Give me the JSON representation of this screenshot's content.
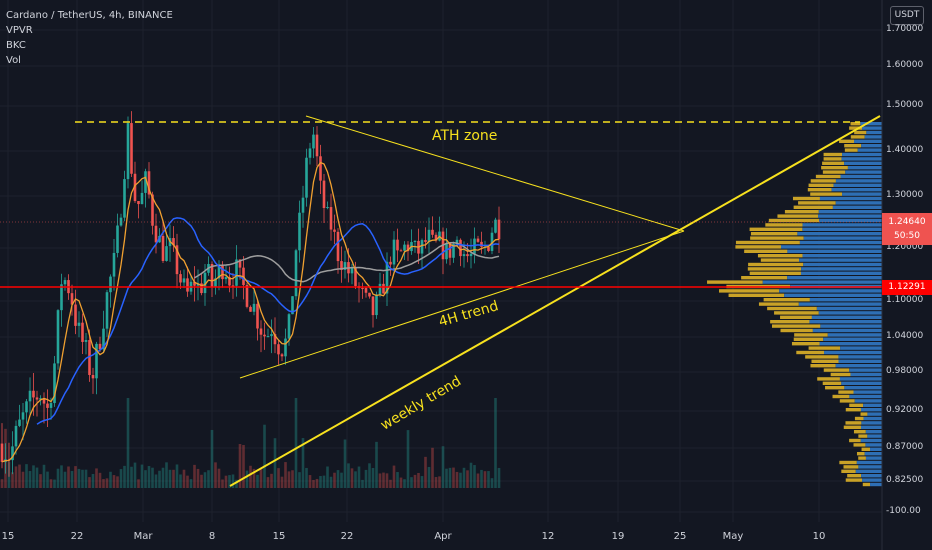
{
  "legend": {
    "symbol": "Cardano / TetherUS, 4h, BINANCE",
    "indicators": [
      "VPVR",
      "BKC",
      "Vol"
    ]
  },
  "axis_unit": "USDT",
  "chart_data": {
    "type": "candlestick",
    "y_ticks": [
      "1.70000",
      "1.60000",
      "1.50000",
      "1.40000",
      "1.30000",
      "1.20000",
      "1.10000",
      "1.04000",
      "0.98000",
      "0.92000",
      "0.87000",
      "0.82500",
      "-100.00"
    ],
    "x_ticks": [
      "15",
      "22",
      "Mar",
      "8",
      "15",
      "22",
      "Apr",
      "12",
      "19",
      "25",
      "May",
      "10"
    ],
    "current_price": "1.24640",
    "countdown": "50:50",
    "support_price": "1.12291",
    "annotations": [
      "ATH zone",
      "4H trend",
      "weekly trend"
    ],
    "colors": {
      "up": "#26a69a",
      "down": "#ef5350",
      "ath_line": "#f7e11e",
      "trend_line": "#f7e11e",
      "support_line": "#ff0000",
      "ma_fast": "#f0a030",
      "ma_mid": "#2962ff",
      "ma_slow": "#9e9e9e",
      "vp_up": "#2e6fb5",
      "vp_down": "#c9a227"
    },
    "series": [
      {
        "name": "ADA/USDT",
        "approx_path": [
          [
            0,
            0.88
          ],
          [
            10,
            0.86
          ],
          [
            20,
            0.9
          ],
          [
            30,
            0.93
          ],
          [
            40,
            0.95
          ],
          [
            48,
            0.92
          ],
          [
            55,
            1.0
          ],
          [
            62,
            1.15
          ],
          [
            70,
            1.12
          ],
          [
            78,
            1.05
          ],
          [
            85,
            1.02
          ],
          [
            92,
            0.97
          ],
          [
            100,
            1.04
          ],
          [
            108,
            1.12
          ],
          [
            115,
            1.18
          ],
          [
            122,
            1.3
          ],
          [
            128,
            1.45
          ],
          [
            134,
            1.3
          ],
          [
            140,
            1.28
          ],
          [
            146,
            1.34
          ],
          [
            152,
            1.26
          ],
          [
            158,
            1.22
          ],
          [
            164,
            1.19
          ],
          [
            170,
            1.2
          ],
          [
            176,
            1.17
          ],
          [
            182,
            1.13
          ],
          [
            188,
            1.11
          ],
          [
            194,
            1.14
          ],
          [
            200,
            1.12
          ],
          [
            206,
            1.16
          ],
          [
            212,
            1.13
          ],
          [
            218,
            1.15
          ],
          [
            224,
            1.17
          ],
          [
            230,
            1.14
          ],
          [
            236,
            1.16
          ],
          [
            242,
            1.13
          ],
          [
            248,
            1.11
          ],
          [
            254,
            1.09
          ],
          [
            260,
            1.06
          ],
          [
            266,
            1.04
          ],
          [
            272,
            1.06
          ],
          [
            278,
            1.03
          ],
          [
            284,
            1.02
          ],
          [
            290,
            1.06
          ],
          [
            296,
            1.2
          ],
          [
            302,
            1.28
          ],
          [
            308,
            1.4
          ],
          [
            314,
            1.44
          ],
          [
            320,
            1.32
          ],
          [
            326,
            1.26
          ],
          [
            332,
            1.24
          ],
          [
            338,
            1.19
          ],
          [
            344,
            1.17
          ],
          [
            350,
            1.15
          ],
          [
            356,
            1.13
          ],
          [
            362,
            1.11
          ],
          [
            368,
            1.09
          ],
          [
            374,
            1.08
          ],
          [
            380,
            1.11
          ],
          [
            386,
            1.15
          ],
          [
            392,
            1.2
          ],
          [
            398,
            1.18
          ],
          [
            404,
            1.2
          ],
          [
            410,
            1.21
          ],
          [
            416,
            1.19
          ],
          [
            422,
            1.2
          ],
          [
            428,
            1.22
          ],
          [
            434,
            1.2
          ],
          [
            440,
            1.21
          ],
          [
            446,
            1.19
          ],
          [
            452,
            1.2
          ],
          [
            458,
            1.22
          ],
          [
            464,
            1.19
          ],
          [
            470,
            1.18
          ],
          [
            476,
            1.2
          ],
          [
            482,
            1.19
          ],
          [
            488,
            1.21
          ],
          [
            494,
            1.25
          ],
          [
            500,
            1.24
          ]
        ]
      }
    ]
  }
}
